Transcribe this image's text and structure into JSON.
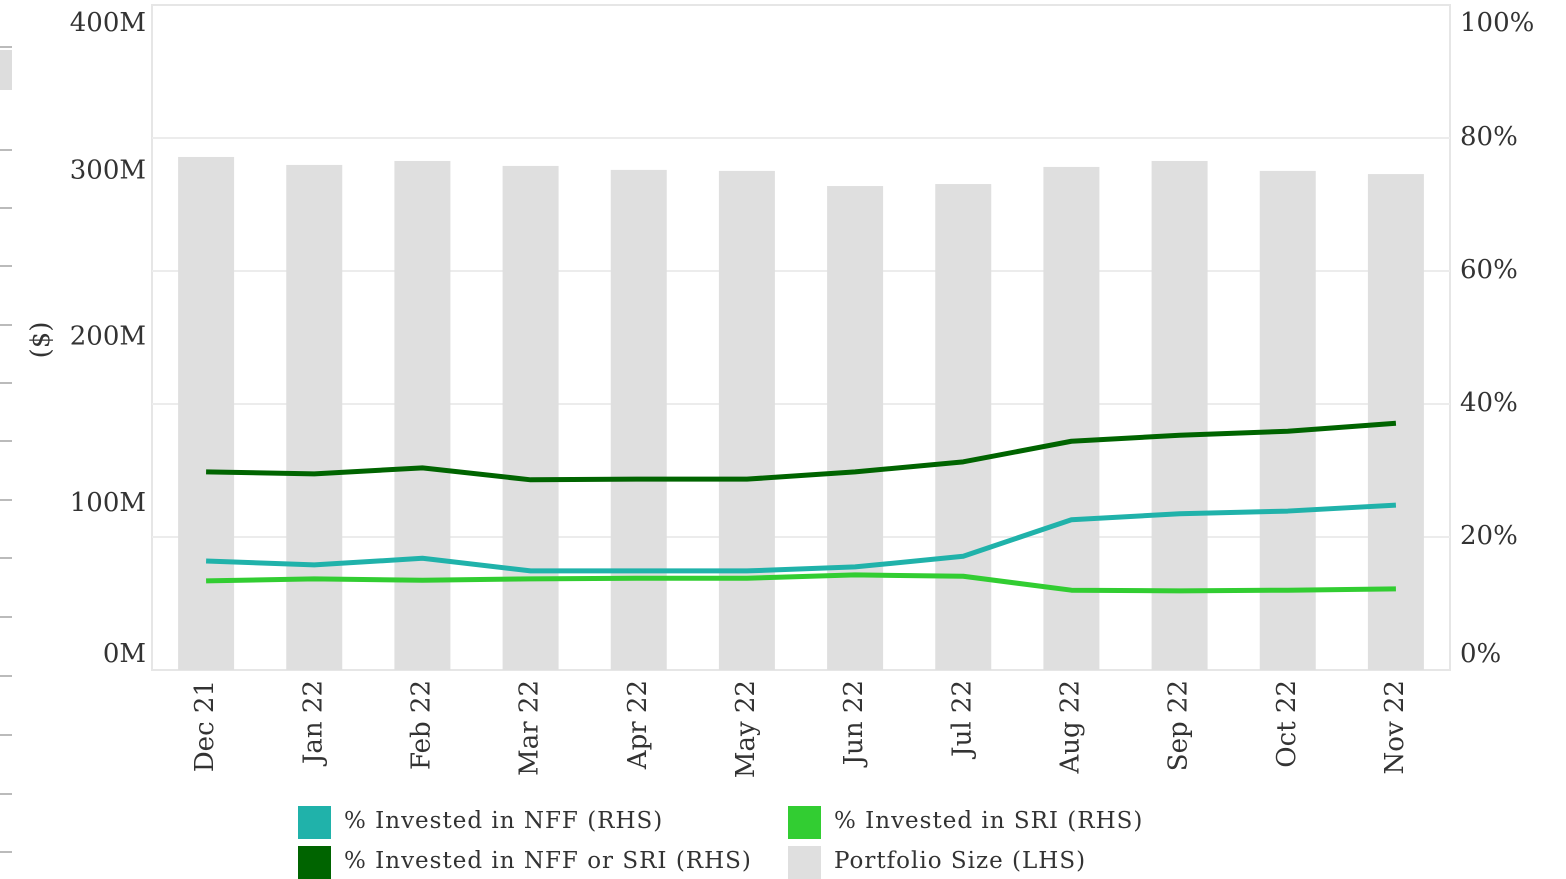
{
  "chart_data": {
    "type": "bar-line",
    "y_label": "($)",
    "categories": [
      "Dec 21",
      "Jan 22",
      "Feb 22",
      "Mar 22",
      "Apr 22",
      "May 22",
      "Jun 22",
      "Jul 22",
      "Aug 22",
      "Sep 22",
      "Oct 22",
      "Nov 22"
    ],
    "series": [
      {
        "name": "% Invested in NFF (RHS)",
        "color": "#20b2aa",
        "kind": "line",
        "axis": "y2",
        "values": [
          16.4,
          15.8,
          16.8,
          14.9,
          14.9,
          14.9,
          15.5,
          17.1,
          22.6,
          23.5,
          23.9,
          24.8
        ]
      },
      {
        "name": "% Invested in SRI (RHS)",
        "color": "#32cd32",
        "kind": "line",
        "axis": "y2",
        "values": [
          13.4,
          13.7,
          13.5,
          13.7,
          13.8,
          13.8,
          14.3,
          14.1,
          12.0,
          11.9,
          12.0,
          12.2
        ]
      },
      {
        "name": "% Invested in NFF or SRI (RHS)",
        "color": "#006400",
        "kind": "line",
        "axis": "y2",
        "values": [
          29.8,
          29.5,
          30.4,
          28.6,
          28.7,
          28.7,
          29.8,
          31.3,
          34.4,
          35.3,
          35.9,
          37.1
        ]
      },
      {
        "name": "Portfolio Size (LHS)",
        "color": "#dfdfdf",
        "kind": "bar",
        "axis": "y",
        "values": [
          308.6,
          303.8,
          306.2,
          303.2,
          300.8,
          300.2,
          291.1,
          292.3,
          302.6,
          306.2,
          300.2,
          298.3
        ]
      }
    ],
    "ylim": [
      0,
      400
    ],
    "yticks": [
      {
        "value": 0,
        "label": "0M"
      },
      {
        "value": 100,
        "label": "100M"
      },
      {
        "value": 200,
        "label": "200M"
      },
      {
        "value": 300,
        "label": "300M"
      },
      {
        "value": 400,
        "label": "400M"
      }
    ],
    "y2lim": [
      0,
      100
    ],
    "y2ticks": [
      {
        "value": 0,
        "label": "0%"
      },
      {
        "value": 20,
        "label": "20%"
      },
      {
        "value": 40,
        "label": "40%"
      },
      {
        "value": 60,
        "label": "60%"
      },
      {
        "value": 80,
        "label": "80%"
      },
      {
        "value": 100,
        "label": "100%"
      }
    ],
    "grid": true
  }
}
